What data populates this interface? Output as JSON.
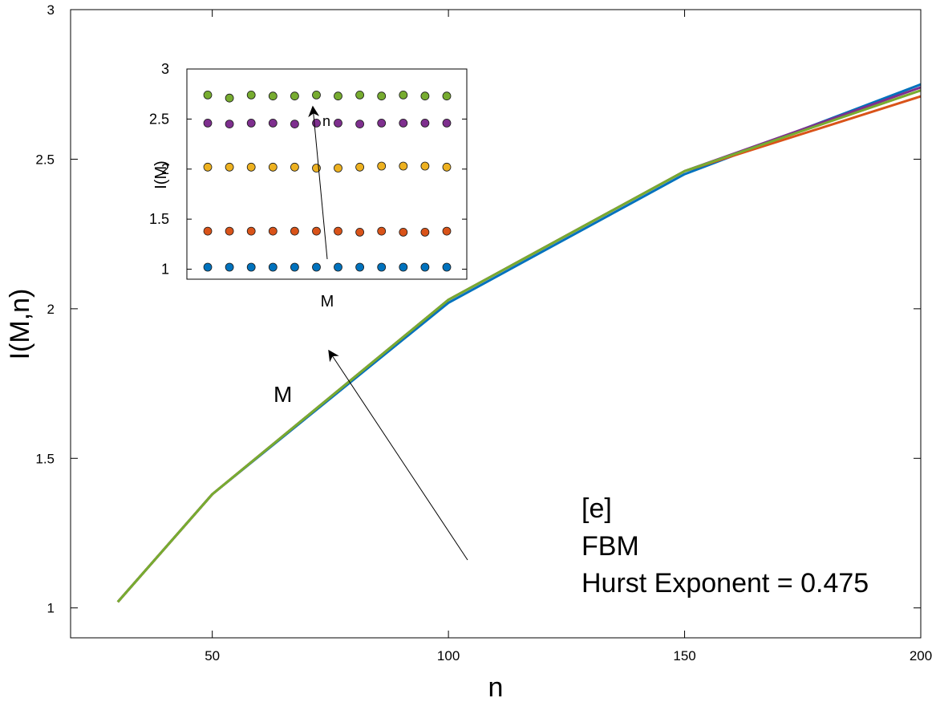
{
  "chart_data": [
    {
      "type": "line",
      "xlabel": "n",
      "ylabel": "I(M,n)",
      "xlim": [
        20,
        200
      ],
      "ylim": [
        0.9,
        3.0
      ],
      "xticks": [
        50,
        100,
        150,
        200
      ],
      "yticks": [
        1,
        1.5,
        2,
        2.5,
        3
      ],
      "xtick_labels": [
        "50",
        "100",
        "150",
        "200"
      ],
      "ytick_labels": [
        "1",
        "1.5",
        "2",
        "2.5",
        "3"
      ],
      "grid": false,
      "x": [
        30,
        50,
        100,
        150,
        200
      ],
      "series": [
        {
          "color": "#0072BD",
          "values": [
            1.02,
            1.38,
            2.02,
            2.45,
            2.75
          ]
        },
        {
          "color": "#D95319",
          "values": [
            1.02,
            1.38,
            2.03,
            2.46,
            2.71
          ]
        },
        {
          "color": "#EDB120",
          "values": [
            1.02,
            1.38,
            2.03,
            2.46,
            2.73
          ]
        },
        {
          "color": "#7E2F8E",
          "values": [
            1.02,
            1.38,
            2.03,
            2.46,
            2.74
          ]
        },
        {
          "color": "#77AC30",
          "values": [
            1.02,
            1.38,
            2.03,
            2.46,
            2.73
          ]
        }
      ],
      "annotations": {
        "arrow_label": "M",
        "text_lines": [
          "[e]",
          "FBM",
          "Hurst Exponent = 0.475"
        ]
      }
    },
    {
      "type": "scatter",
      "xlabel": "M",
      "ylabel": "I(M)",
      "ylim": [
        0.9,
        3.0
      ],
      "yticks": [
        1,
        1.5,
        2,
        2.5,
        3
      ],
      "ytick_labels": [
        "1",
        "1.5",
        "2",
        "2.5",
        "3"
      ],
      "xticks": [],
      "grid": false,
      "x": [
        1,
        2,
        3,
        4,
        5,
        6,
        7,
        8,
        9,
        10,
        11,
        12
      ],
      "series": [
        {
          "color": "#0072BD",
          "values": [
            1.02,
            1.02,
            1.02,
            1.02,
            1.02,
            1.02,
            1.02,
            1.02,
            1.02,
            1.02,
            1.02,
            1.02
          ]
        },
        {
          "color": "#D95319",
          "values": [
            1.38,
            1.38,
            1.38,
            1.38,
            1.38,
            1.38,
            1.38,
            1.37,
            1.38,
            1.37,
            1.37,
            1.38
          ]
        },
        {
          "color": "#EDB120",
          "values": [
            2.02,
            2.02,
            2.02,
            2.02,
            2.02,
            2.01,
            2.01,
            2.02,
            2.03,
            2.03,
            2.03,
            2.02
          ]
        },
        {
          "color": "#7E2F8E",
          "values": [
            2.46,
            2.45,
            2.46,
            2.46,
            2.45,
            2.46,
            2.46,
            2.45,
            2.46,
            2.46,
            2.46,
            2.46
          ]
        },
        {
          "color": "#77AC30",
          "values": [
            2.74,
            2.71,
            2.74,
            2.73,
            2.73,
            2.74,
            2.73,
            2.74,
            2.73,
            2.74,
            2.73,
            2.73
          ]
        }
      ],
      "annotations": {
        "arrow_label": "n"
      }
    }
  ]
}
